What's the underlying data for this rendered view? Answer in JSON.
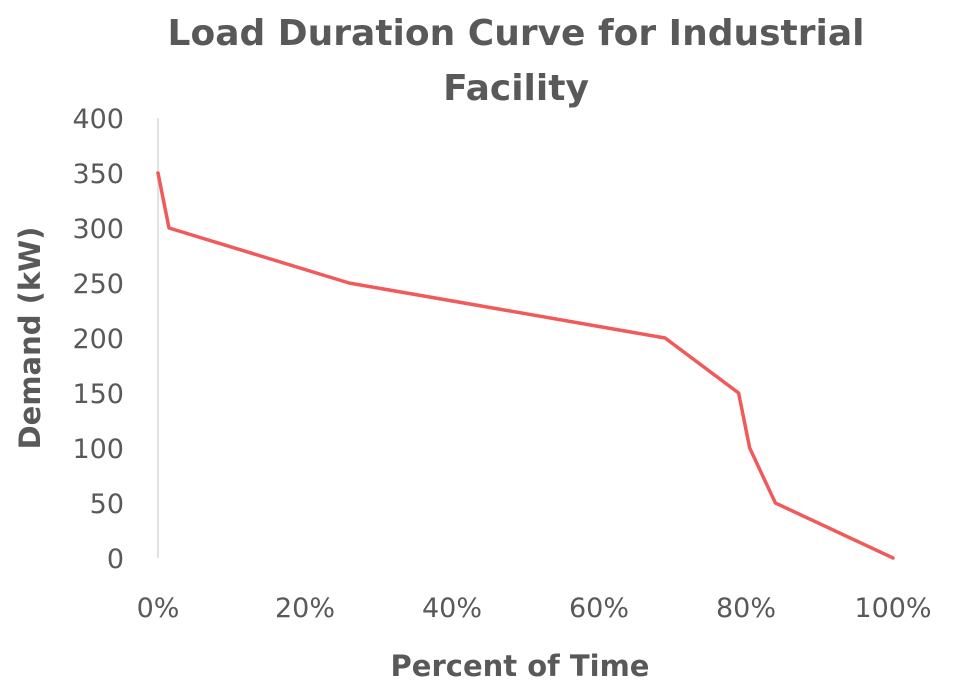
{
  "chart_data": {
    "type": "line",
    "title_lines": [
      "Load Duration Curve for Industrial",
      "Facility"
    ],
    "xlabel": "Percent of Time",
    "ylabel": "Demand (kW)",
    "xlim": [
      0,
      100
    ],
    "ylim": [
      0,
      400
    ],
    "x_ticks": [
      "0%",
      "20%",
      "40%",
      "60%",
      "80%",
      "100%"
    ],
    "y_ticks": [
      "400",
      "350",
      "300",
      "250",
      "200",
      "150",
      "100",
      "50",
      "0"
    ],
    "grid": false,
    "series": [
      {
        "color": "#f05a5a",
        "points": [
          {
            "x": 0,
            "y": 350
          },
          {
            "x": 1.5,
            "y": 300
          },
          {
            "x": 26,
            "y": 250
          },
          {
            "x": 69,
            "y": 200
          },
          {
            "x": 79,
            "y": 150
          },
          {
            "x": 80.5,
            "y": 100
          },
          {
            "x": 84,
            "y": 50
          },
          {
            "x": 100,
            "y": 0
          }
        ]
      }
    ]
  }
}
